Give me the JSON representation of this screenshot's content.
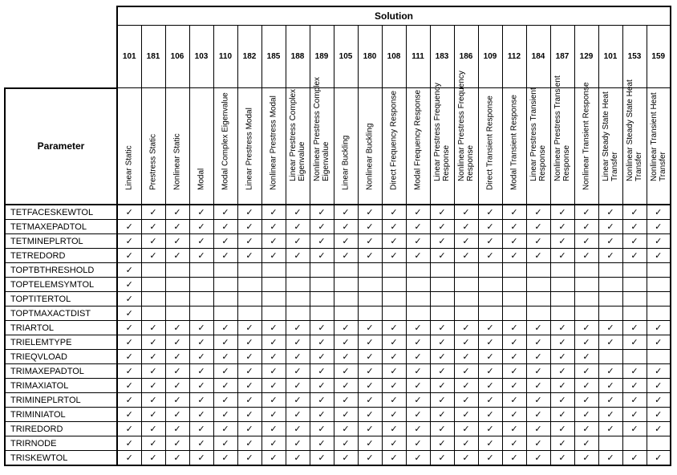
{
  "table": {
    "solution_header": "Solution",
    "parameter_header": "Parameter",
    "check_glyph": "✓",
    "columns": [
      {
        "id": "101",
        "label": "Linear  Static"
      },
      {
        "id": "181",
        "label": "Prestress  Static"
      },
      {
        "id": "106",
        "label": "Nonlinear  Static"
      },
      {
        "id": "103",
        "label": "Modal"
      },
      {
        "id": "110",
        "label": "Modal Complex Eigenvalue"
      },
      {
        "id": "182",
        "label": "Linear Prestress Modal"
      },
      {
        "id": "185",
        "label": "Nonlinear Prestress Modal"
      },
      {
        "id": "188",
        "label": "Linear Prestress Complex Eigenvalue"
      },
      {
        "id": "189",
        "label": "Nonlinear Prestress Complex Eigenvalue"
      },
      {
        "id": "105",
        "label": "Linear Buckling"
      },
      {
        "id": "180",
        "label": "Nonlinear Buckling"
      },
      {
        "id": "108",
        "label": "Direct Frequency Response"
      },
      {
        "id": "111",
        "label": "Modal Frequency Response"
      },
      {
        "id": "183",
        "label": "Linear Prestress Frequency Response"
      },
      {
        "id": "186",
        "label": "Nonlinear Prestress Frequency Response"
      },
      {
        "id": "109",
        "label": "Direct Transient Response"
      },
      {
        "id": "112",
        "label": "Modal Transient Response"
      },
      {
        "id": "184",
        "label": "Linear Prestress Transient Response"
      },
      {
        "id": "187",
        "label": "Nonlinear Prestress Transient Response"
      },
      {
        "id": "129",
        "label": "Nonlinear Transient Response"
      },
      {
        "id": "101",
        "label": "Linear  Steady State Heat Transfer"
      },
      {
        "id": "153",
        "label": "Nonlinear  Steady  State Heat Transfer"
      },
      {
        "id": "159",
        "label": "Nonlinear Transient Heat Transfer"
      }
    ],
    "rows": [
      {
        "name": "TETFACESKEWTOL",
        "checks": [
          1,
          1,
          1,
          1,
          1,
          1,
          1,
          1,
          1,
          1,
          1,
          1,
          1,
          1,
          1,
          1,
          1,
          1,
          1,
          1,
          1,
          1,
          1
        ]
      },
      {
        "name": "TETMAXEPADTOL",
        "checks": [
          1,
          1,
          1,
          1,
          1,
          1,
          1,
          1,
          1,
          1,
          1,
          1,
          1,
          1,
          1,
          1,
          1,
          1,
          1,
          1,
          1,
          1,
          1
        ]
      },
      {
        "name": "TETMINEPLRTOL",
        "checks": [
          1,
          1,
          1,
          1,
          1,
          1,
          1,
          1,
          1,
          1,
          1,
          1,
          1,
          1,
          1,
          1,
          1,
          1,
          1,
          1,
          1,
          1,
          1
        ]
      },
      {
        "name": "TETREDORD",
        "checks": [
          1,
          1,
          1,
          1,
          1,
          1,
          1,
          1,
          1,
          1,
          1,
          1,
          1,
          1,
          1,
          1,
          1,
          1,
          1,
          1,
          1,
          1,
          1
        ]
      },
      {
        "name": "TOPTBTHRESHOLD",
        "checks": [
          1,
          0,
          0,
          0,
          0,
          0,
          0,
          0,
          0,
          0,
          0,
          0,
          0,
          0,
          0,
          0,
          0,
          0,
          0,
          0,
          0,
          0,
          0
        ]
      },
      {
        "name": "TOPTELEMSYMTOL",
        "checks": [
          1,
          0,
          0,
          0,
          0,
          0,
          0,
          0,
          0,
          0,
          0,
          0,
          0,
          0,
          0,
          0,
          0,
          0,
          0,
          0,
          0,
          0,
          0
        ]
      },
      {
        "name": "TOPTITERTOL",
        "checks": [
          1,
          0,
          0,
          0,
          0,
          0,
          0,
          0,
          0,
          0,
          0,
          0,
          0,
          0,
          0,
          0,
          0,
          0,
          0,
          0,
          0,
          0,
          0
        ]
      },
      {
        "name": "TOPTMAXACTDIST",
        "checks": [
          1,
          0,
          0,
          0,
          0,
          0,
          0,
          0,
          0,
          0,
          0,
          0,
          0,
          0,
          0,
          0,
          0,
          0,
          0,
          0,
          0,
          0,
          0
        ]
      },
      {
        "name": "TRIARTOL",
        "checks": [
          1,
          1,
          1,
          1,
          1,
          1,
          1,
          1,
          1,
          1,
          1,
          1,
          1,
          1,
          1,
          1,
          1,
          1,
          1,
          1,
          1,
          1,
          1
        ]
      },
      {
        "name": "TRIELEMTYPE",
        "checks": [
          1,
          1,
          1,
          1,
          1,
          1,
          1,
          1,
          1,
          1,
          1,
          1,
          1,
          1,
          1,
          1,
          1,
          1,
          1,
          1,
          1,
          1,
          1
        ]
      },
      {
        "name": "TRIEQVLOAD",
        "checks": [
          1,
          1,
          1,
          1,
          1,
          1,
          1,
          1,
          1,
          1,
          1,
          1,
          1,
          1,
          1,
          1,
          1,
          1,
          1,
          1,
          0,
          0,
          0
        ]
      },
      {
        "name": "TRIMAXEPADTOL",
        "checks": [
          1,
          1,
          1,
          1,
          1,
          1,
          1,
          1,
          1,
          1,
          1,
          1,
          1,
          1,
          1,
          1,
          1,
          1,
          1,
          1,
          1,
          1,
          1
        ]
      },
      {
        "name": "TRIMAXIATOL",
        "checks": [
          1,
          1,
          1,
          1,
          1,
          1,
          1,
          1,
          1,
          1,
          1,
          1,
          1,
          1,
          1,
          1,
          1,
          1,
          1,
          1,
          1,
          1,
          1
        ]
      },
      {
        "name": "TRIMINEPLRTOL",
        "checks": [
          1,
          1,
          1,
          1,
          1,
          1,
          1,
          1,
          1,
          1,
          1,
          1,
          1,
          1,
          1,
          1,
          1,
          1,
          1,
          1,
          1,
          1,
          1
        ]
      },
      {
        "name": "TRIMINIATOL",
        "checks": [
          1,
          1,
          1,
          1,
          1,
          1,
          1,
          1,
          1,
          1,
          1,
          1,
          1,
          1,
          1,
          1,
          1,
          1,
          1,
          1,
          1,
          1,
          1
        ]
      },
      {
        "name": "TRIREDORD",
        "checks": [
          1,
          1,
          1,
          1,
          1,
          1,
          1,
          1,
          1,
          1,
          1,
          1,
          1,
          1,
          1,
          1,
          1,
          1,
          1,
          1,
          1,
          1,
          1
        ]
      },
      {
        "name": "TRIRNODE",
        "checks": [
          1,
          1,
          1,
          1,
          1,
          1,
          1,
          1,
          1,
          1,
          1,
          1,
          1,
          1,
          1,
          1,
          1,
          1,
          1,
          1,
          0,
          0,
          0
        ]
      },
      {
        "name": "TRISKEWTOL",
        "checks": [
          1,
          1,
          1,
          1,
          1,
          1,
          1,
          1,
          1,
          1,
          1,
          1,
          1,
          1,
          1,
          1,
          1,
          1,
          1,
          1,
          1,
          1,
          1
        ]
      }
    ]
  }
}
